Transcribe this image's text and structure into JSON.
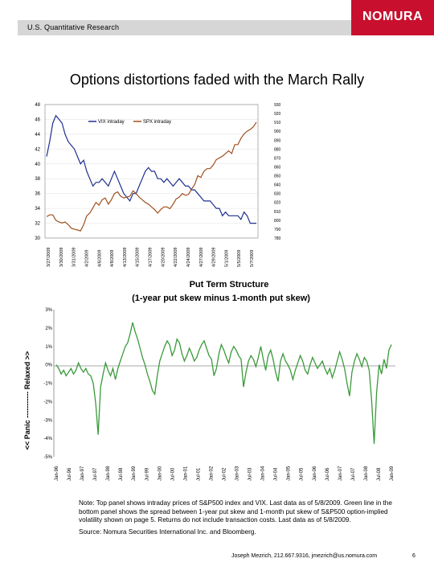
{
  "header": {
    "department": "U.S. Quantitative Research",
    "logo_text": "NOMURA"
  },
  "page_title": "Options distortions faded with the March Rally",
  "note_text": "Note: Top panel shows intraday prices of S&P500 index and VIX. Last data as of 5/8/2009. Green line in the bottom panel shows the spread between 1-year put skew and 1-month put skew of S&P500 option-implied volatility shown on page 5. Returns do not include transaction costs. Last data as of 5/8/2009.",
  "source_text": "Source: Nomura Securities International Inc. and Bloomberg.",
  "footer": {
    "contact": "Joseph Mezrich, 212.667.9316, jmezrich@us.nomura.com",
    "page": "6"
  },
  "colors": {
    "vix": "#1f2f8f",
    "spx": "#a0501e",
    "skew": "#3a9a3a",
    "logo": "#c8102e"
  },
  "chart_data": [
    {
      "type": "line",
      "title": "",
      "legend": [
        "VIX intraday",
        "SPX intraday"
      ],
      "legend_position": "top-left",
      "x_tick_labels": [
        "3/27/2009",
        "3/30/2009",
        "3/31/2009",
        "4/2/2009",
        "4/6/2009",
        "4/8/2009",
        "4/13/2009",
        "4/15/2009",
        "4/17/2009",
        "4/20/2009",
        "4/22/2009",
        "4/24/2009",
        "4/27/2009",
        "4/29/2009",
        "5/1/2009",
        "5/5/2009",
        "5/7/2009"
      ],
      "y_left_ticks": [
        "30",
        "32",
        "34",
        "36",
        "38",
        "40",
        "42",
        "44",
        "46",
        "48"
      ],
      "y_right_ticks": [
        "780",
        "790",
        "800",
        "810",
        "820",
        "830",
        "840",
        "850",
        "860",
        "870",
        "880",
        "890",
        "900",
        "910",
        "920",
        "930"
      ],
      "ylim_left": [
        30,
        48
      ],
      "ylim_right": [
        780,
        930
      ],
      "series": [
        {
          "name": "VIX intraday",
          "axis": "left",
          "values": [
            41,
            43,
            45.5,
            46.5,
            46,
            45.5,
            44,
            43,
            42.5,
            42,
            41,
            40,
            40.5,
            39,
            38,
            37,
            37.5,
            37.5,
            38,
            37.5,
            37,
            38,
            39,
            38,
            37,
            36,
            35.5,
            35,
            36,
            36,
            37,
            38,
            39,
            39.5,
            39,
            39,
            38,
            38,
            37.5,
            38,
            37.5,
            37,
            37.5,
            38,
            37.5,
            37,
            37,
            36.5,
            36.5,
            36,
            35.5,
            35,
            35,
            35,
            34.5,
            34,
            34,
            33,
            33.5,
            33,
            33,
            33,
            33,
            32.5,
            33.5,
            33,
            32,
            32,
            32
          ]
        },
        {
          "name": "SPX intraday",
          "axis": "right",
          "values": [
            804,
            806,
            806,
            800,
            798,
            797,
            798,
            795,
            791,
            790,
            789,
            788,
            795,
            805,
            808,
            814,
            820,
            817,
            823,
            825,
            818,
            823,
            830,
            832,
            827,
            825,
            826,
            827,
            833,
            830,
            826,
            823,
            820,
            818,
            815,
            812,
            808,
            812,
            815,
            815,
            813,
            818,
            824,
            826,
            830,
            828,
            829,
            835,
            840,
            850,
            848,
            855,
            858,
            858,
            862,
            868,
            870,
            872,
            875,
            878,
            875,
            885,
            885,
            892,
            897,
            900,
            902,
            905,
            910
          ]
        }
      ]
    },
    {
      "type": "line",
      "title": "Put Term Structure",
      "subtitle": "(1-year put skew minus 1-month put skew)",
      "ylabel": "<< Panic ----------- Relaxed >>",
      "y_ticks": [
        "3%",
        "2%",
        "1%",
        "0%",
        "-1%",
        "-2%",
        "-3%",
        "-4%",
        "-5%"
      ],
      "ylim": [
        -5,
        3
      ],
      "x_tick_labels": [
        "Jan-96",
        "Jul-96",
        "Jan-97",
        "Jul-97",
        "Jan-98",
        "Jul-98",
        "Jan-99",
        "Jul-99",
        "Jan-00",
        "Jul-00",
        "Jan-01",
        "Jul-01",
        "Jan-02",
        "Jul-02",
        "Jan-03",
        "Jul-03",
        "Jan-04",
        "Jul-04",
        "Jan-05",
        "Jul-05",
        "Jan-06",
        "Jul-06",
        "Jan-07",
        "Jul-07",
        "Jan-08",
        "Jul-08",
        "Jan-09"
      ],
      "series": [
        {
          "name": "",
          "values": [
            0,
            -0.2,
            -0.5,
            -0.3,
            -0.6,
            -0.4,
            -0.2,
            -0.5,
            -0.3,
            0.1,
            -0.2,
            -0.4,
            -0.2,
            -0.5,
            -0.6,
            -1,
            -2.1,
            -3.8,
            -1.2,
            -0.5,
            0.1,
            -0.3,
            -0.6,
            -0.2,
            -0.8,
            -0.2,
            0.2,
            0.6,
            1,
            1.2,
            1.7,
            2.3,
            1.8,
            1.4,
            0.9,
            0.4,
            0,
            -0.5,
            -0.9,
            -1.4,
            -1.6,
            -0.6,
            0.2,
            0.6,
            1,
            1.3,
            1.1,
            0.5,
            0.8,
            1.4,
            1.2,
            0.6,
            0.2,
            0.5,
            0.9,
            0.6,
            0.2,
            0.4,
            0.8,
            1.1,
            1.3,
            0.9,
            0.5,
            0.3,
            -0.6,
            -0.2,
            0.6,
            1.1,
            0.8,
            0.4,
            0.1,
            0.7,
            1,
            0.8,
            0.5,
            0.3,
            -1.2,
            -0.4,
            0.2,
            0.5,
            0.3,
            -0.1,
            0.4,
            1,
            0.3,
            -0.3,
            0.5,
            0.8,
            0.3,
            -0.4,
            -0.9,
            0.2,
            0.6,
            0.2,
            0,
            -0.3,
            -0.8,
            -0.3,
            0.1,
            0.5,
            0.2,
            -0.3,
            -0.5,
            0,
            0.4,
            0.1,
            -0.2,
            0,
            0.2,
            -0.2,
            -0.5,
            -0.2,
            -0.7,
            -0.3,
            0.2,
            0.7,
            0.3,
            -0.2,
            -1,
            -1.7,
            -0.4,
            0.2,
            0.6,
            0.3,
            -0.1,
            0.4,
            0.2,
            -0.3,
            -2,
            -4.3,
            -1.5,
            0,
            -0.5,
            0.3,
            -0.2,
            0.8,
            1.1
          ]
        }
      ]
    }
  ]
}
